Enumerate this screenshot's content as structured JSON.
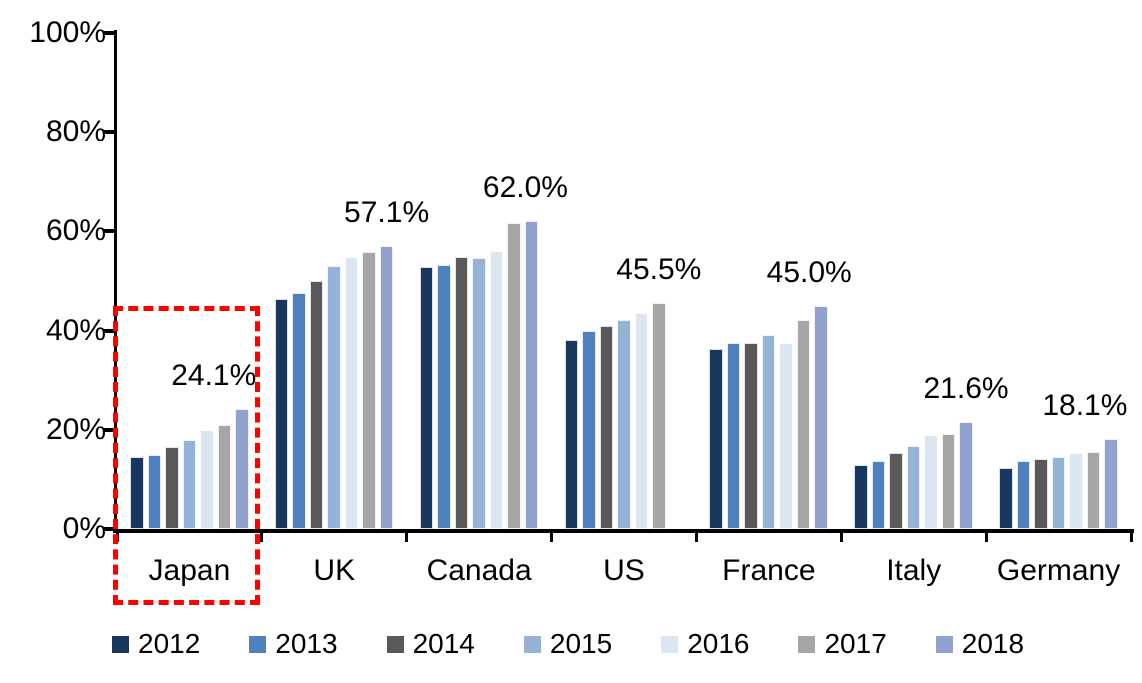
{
  "chart_data": {
    "type": "bar",
    "title": "",
    "unit": "percent",
    "categories": [
      "Japan",
      "UK",
      "Canada",
      "US",
      "France",
      "Italy",
      "Germany"
    ],
    "series": [
      {
        "name": "2012",
        "color": "#17375E",
        "values": [
          14.6,
          46.3,
          52.8,
          38.1,
          36.2,
          13.0,
          12.2
        ]
      },
      {
        "name": "2013",
        "color": "#4E81BD",
        "values": [
          15.0,
          47.6,
          53.3,
          39.9,
          37.6,
          13.8,
          13.7
        ]
      },
      {
        "name": "2014",
        "color": "#595959",
        "values": [
          16.6,
          49.9,
          54.8,
          41.0,
          37.5,
          15.3,
          14.1
        ]
      },
      {
        "name": "2015",
        "color": "#95B3D7",
        "values": [
          17.9,
          53.0,
          54.6,
          42.1,
          39.2,
          16.7,
          14.6
        ]
      },
      {
        "name": "2016",
        "color": "#DCE6F2",
        "values": [
          19.9,
          54.8,
          56.1,
          43.5,
          37.4,
          18.9,
          15.3
        ]
      },
      {
        "name": "2017",
        "color": "#A6A6A6",
        "values": [
          21.0,
          55.8,
          61.6,
          45.5,
          42.2,
          19.1,
          15.6
        ]
      },
      {
        "name": "2018",
        "color": "#92A2CF",
        "values": [
          24.1,
          57.1,
          62.0,
          null,
          45.0,
          21.6,
          18.1
        ]
      }
    ],
    "value_labels": [
      {
        "category": "Japan",
        "text": "24.1%",
        "dx": -28
      },
      {
        "category": "UK",
        "text": "57.1%",
        "dx": 0
      },
      {
        "category": "Canada",
        "text": "62.0%",
        "dx": -6
      },
      {
        "category": "US",
        "text": "45.5%",
        "dx": 0
      },
      {
        "category": "France",
        "text": "45.0%",
        "dx": -12
      },
      {
        "category": "Italy",
        "text": "21.6%",
        "dx": 0
      },
      {
        "category": "Germany",
        "text": "18.1%",
        "dx": -26
      }
    ],
    "y_axis": {
      "min": 0,
      "max": 100,
      "tick_step": 20,
      "tick_labels": [
        "0%",
        "20%",
        "40%",
        "60%",
        "80%",
        "100%"
      ]
    },
    "legend": {
      "position": "bottom",
      "entries": [
        "2012",
        "2013",
        "2014",
        "2015",
        "2016",
        "2017",
        "2018"
      ]
    },
    "grid": false,
    "highlight_box": {
      "target_category": "Japan",
      "color": "#FE0000",
      "style": "dashed"
    }
  }
}
